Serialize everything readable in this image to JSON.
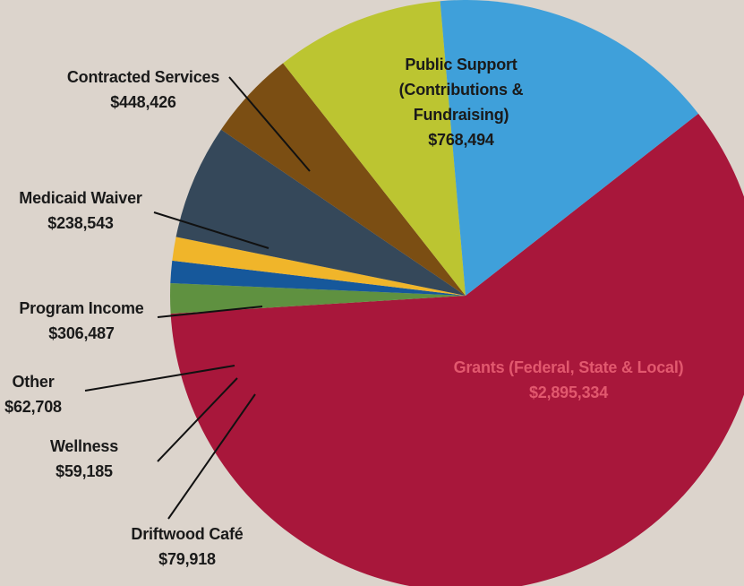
{
  "chart_data": {
    "type": "pie",
    "slices": [
      {
        "name": "Grants (Federal, State & Local)",
        "value": 2895334,
        "value_label": "$2,895,334",
        "color": "#a8173b",
        "text_color": "#e2586e"
      },
      {
        "name": "Driftwood Café",
        "value": 79918,
        "value_label": "$79,918",
        "color": "#5f9140",
        "text_color": "#1a1a1a"
      },
      {
        "name": "Wellness",
        "value": 59185,
        "value_label": "$59,185",
        "color": "#16589b",
        "text_color": "#1a1a1a"
      },
      {
        "name": "Other",
        "value": 62708,
        "value_label": "$62,708",
        "color": "#f0b52a",
        "text_color": "#1a1a1a"
      },
      {
        "name": "Program Income",
        "value": 306487,
        "value_label": "$306,487",
        "color": "#35485a",
        "text_color": "#1a1a1a"
      },
      {
        "name": "Medicaid Waiver",
        "value": 238543,
        "value_label": "$238,543",
        "color": "#7b4e13",
        "text_color": "#1a1a1a"
      },
      {
        "name": "Contracted Services",
        "value": 448426,
        "value_label": "$448,426",
        "color": "#bcc531",
        "text_color": "#1a1a1a"
      },
      {
        "name": "Public Support (Contributions & Fundraising)",
        "value": 768494,
        "value_label": "$768,494",
        "color": "#3fa0da",
        "text_color": "#1a1a1a"
      }
    ],
    "label_text": [
      {
        "lines": [
          "Grants (Federal, State & Local)"
        ],
        "value": "$2,895,334"
      },
      {
        "lines": [
          "Driftwood Café"
        ],
        "value": "$79,918"
      },
      {
        "lines": [
          "Wellness"
        ],
        "value": "$59,185"
      },
      {
        "lines": [
          "Other"
        ],
        "value": "$62,708"
      },
      {
        "lines": [
          "Program Income"
        ],
        "value": "$306,487"
      },
      {
        "lines": [
          "Medicaid Waiver"
        ],
        "value": "$238,543"
      },
      {
        "lines": [
          "Contracted Services"
        ],
        "value": "$448,426"
      },
      {
        "lines": [
          "Public Support",
          "(Contributions &",
          "Fundraising)"
        ],
        "value": "$768,494"
      }
    ]
  },
  "colors": {
    "background": "#dcd4cc",
    "leader_line": "#111111"
  }
}
